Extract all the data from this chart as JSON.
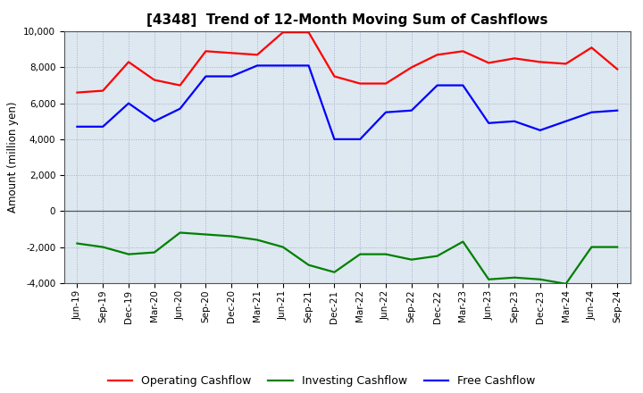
{
  "title": "[4348]  Trend of 12-Month Moving Sum of Cashflows",
  "ylabel": "Amount (million yen)",
  "background_color": "#ffffff",
  "plot_bg_color": "#dde8f0",
  "grid_color": "#aaaacc",
  "x_labels": [
    "Jun-19",
    "Sep-19",
    "Dec-19",
    "Mar-20",
    "Jun-20",
    "Sep-20",
    "Dec-20",
    "Mar-21",
    "Jun-21",
    "Sep-21",
    "Dec-21",
    "Mar-22",
    "Jun-22",
    "Sep-22",
    "Dec-22",
    "Mar-23",
    "Jun-23",
    "Sep-23",
    "Dec-23",
    "Mar-24",
    "Jun-24",
    "Sep-24"
  ],
  "operating": [
    6600,
    6700,
    8300,
    7300,
    7000,
    8900,
    8800,
    8700,
    9950,
    9950,
    7500,
    7100,
    7100,
    8000,
    8700,
    8900,
    8250,
    8500,
    8300,
    8200,
    9100,
    7900
  ],
  "investing": [
    -1800,
    -2000,
    -2400,
    -2300,
    -1200,
    -1300,
    -1400,
    -1600,
    -2000,
    -3000,
    -3400,
    -2400,
    -2400,
    -2700,
    -2500,
    -1700,
    -3800,
    -3700,
    -3800,
    -4050,
    -2000,
    -2000
  ],
  "free": [
    4700,
    4700,
    6000,
    5000,
    5700,
    7500,
    7500,
    8100,
    8100,
    8100,
    4000,
    4000,
    5500,
    5600,
    7000,
    7000,
    4900,
    5000,
    4500,
    5000,
    5500,
    5600
  ],
  "operating_color": "#ff0000",
  "investing_color": "#008000",
  "free_color": "#0000ff",
  "ylim": [
    -4000,
    10000
  ],
  "yticks": [
    -4000,
    -2000,
    0,
    2000,
    4000,
    6000,
    8000,
    10000
  ],
  "line_width": 1.6,
  "title_fontsize": 11,
  "legend_fontsize": 9,
  "tick_fontsize": 7.5,
  "ylabel_fontsize": 8.5
}
